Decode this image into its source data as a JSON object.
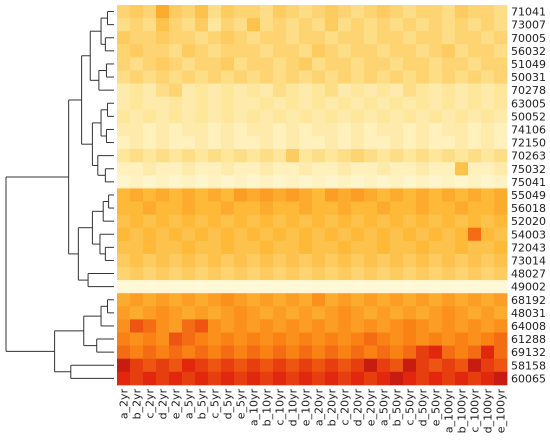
{
  "chart_data": {
    "type": "heatmap",
    "title": "",
    "xlabel": "",
    "ylabel": "",
    "columns": [
      "a_2yr",
      "b_2yr",
      "c_2yr",
      "d_2yr",
      "e_2yr",
      "a_5yr",
      "b_5yr",
      "c_5yr",
      "d_5yr",
      "e_5yr",
      "a_10yr",
      "b_10yr",
      "c_10yr",
      "d_10yr",
      "e_10yr",
      "a_20yr",
      "b_20yr",
      "c_20yr",
      "d_20yr",
      "e_20yr",
      "a_50yr",
      "b_50yr",
      "c_50yr",
      "d_50yr",
      "e_50yr",
      "a_100yr",
      "b_100yr",
      "c_100yr",
      "d_100yr",
      "e_100yr"
    ],
    "rows": [
      "71041",
      "73007",
      "70005",
      "56032",
      "51049",
      "50031",
      "70278",
      "63005",
      "50052",
      "74106",
      "72150",
      "70263",
      "75032",
      "75041",
      "55049",
      "56018",
      "52020",
      "54003",
      "72043",
      "73014",
      "48027",
      "49002",
      "68192",
      "48031",
      "64008",
      "61288",
      "69132",
      "58158",
      "60065"
    ],
    "value_scale": "0 = pale yellow (low) to 1 = dark red (high)",
    "dendrogram": "row clustering tree on left; two major clusters (upper 22 stations, lower 7 stations)",
    "values": [
      [
        0.3,
        0.35,
        0.3,
        0.5,
        0.35,
        0.3,
        0.4,
        0.25,
        0.35,
        0.3,
        0.3,
        0.25,
        0.35,
        0.3,
        0.25,
        0.3,
        0.35,
        0.3,
        0.25,
        0.3,
        0.35,
        0.3,
        0.25,
        0.3,
        0.3,
        0.25,
        0.35,
        0.3,
        0.3,
        0.25
      ],
      [
        0.25,
        0.3,
        0.25,
        0.4,
        0.3,
        0.25,
        0.35,
        0.2,
        0.3,
        0.25,
        0.4,
        0.25,
        0.3,
        0.25,
        0.3,
        0.25,
        0.35,
        0.25,
        0.3,
        0.25,
        0.3,
        0.25,
        0.3,
        0.25,
        0.3,
        0.25,
        0.3,
        0.25,
        0.3,
        0.25
      ],
      [
        0.35,
        0.3,
        0.3,
        0.35,
        0.3,
        0.3,
        0.25,
        0.3,
        0.35,
        0.3,
        0.25,
        0.3,
        0.3,
        0.25,
        0.3,
        0.3,
        0.25,
        0.3,
        0.3,
        0.25,
        0.3,
        0.3,
        0.25,
        0.3,
        0.3,
        0.25,
        0.3,
        0.3,
        0.25,
        0.3
      ],
      [
        0.3,
        0.35,
        0.3,
        0.3,
        0.25,
        0.35,
        0.3,
        0.25,
        0.3,
        0.3,
        0.3,
        0.25,
        0.3,
        0.3,
        0.25,
        0.35,
        0.3,
        0.25,
        0.3,
        0.3,
        0.25,
        0.3,
        0.3,
        0.25,
        0.3,
        0.35,
        0.25,
        0.3,
        0.3,
        0.25
      ],
      [
        0.3,
        0.25,
        0.3,
        0.35,
        0.3,
        0.25,
        0.3,
        0.3,
        0.35,
        0.25,
        0.3,
        0.3,
        0.25,
        0.3,
        0.35,
        0.25,
        0.3,
        0.3,
        0.25,
        0.3,
        0.3,
        0.25,
        0.3,
        0.3,
        0.25,
        0.3,
        0.3,
        0.25,
        0.3,
        0.3
      ],
      [
        0.25,
        0.3,
        0.25,
        0.3,
        0.25,
        0.3,
        0.25,
        0.3,
        0.25,
        0.3,
        0.25,
        0.3,
        0.25,
        0.3,
        0.25,
        0.3,
        0.25,
        0.3,
        0.25,
        0.3,
        0.25,
        0.3,
        0.25,
        0.3,
        0.25,
        0.3,
        0.25,
        0.3,
        0.25,
        0.3
      ],
      [
        0.15,
        0.2,
        0.15,
        0.25,
        0.3,
        0.15,
        0.2,
        0.15,
        0.2,
        0.15,
        0.2,
        0.15,
        0.25,
        0.2,
        0.15,
        0.2,
        0.25,
        0.15,
        0.2,
        0.15,
        0.2,
        0.15,
        0.25,
        0.2,
        0.15,
        0.2,
        0.15,
        0.2,
        0.15,
        0.2
      ],
      [
        0.15,
        0.2,
        0.15,
        0.15,
        0.2,
        0.15,
        0.2,
        0.15,
        0.2,
        0.15,
        0.15,
        0.2,
        0.15,
        0.2,
        0.15,
        0.2,
        0.15,
        0.2,
        0.15,
        0.2,
        0.15,
        0.2,
        0.15,
        0.2,
        0.15,
        0.2,
        0.15,
        0.2,
        0.15,
        0.2
      ],
      [
        0.2,
        0.15,
        0.2,
        0.15,
        0.2,
        0.15,
        0.2,
        0.15,
        0.2,
        0.15,
        0.2,
        0.15,
        0.2,
        0.15,
        0.2,
        0.15,
        0.2,
        0.15,
        0.2,
        0.15,
        0.2,
        0.15,
        0.2,
        0.15,
        0.2,
        0.15,
        0.2,
        0.15,
        0.2,
        0.15
      ],
      [
        0.15,
        0.15,
        0.1,
        0.15,
        0.1,
        0.15,
        0.15,
        0.1,
        0.15,
        0.1,
        0.15,
        0.15,
        0.1,
        0.15,
        0.1,
        0.15,
        0.15,
        0.1,
        0.15,
        0.1,
        0.15,
        0.15,
        0.1,
        0.15,
        0.1,
        0.15,
        0.15,
        0.1,
        0.15,
        0.1
      ],
      [
        0.1,
        0.15,
        0.1,
        0.15,
        0.1,
        0.1,
        0.15,
        0.1,
        0.15,
        0.1,
        0.1,
        0.15,
        0.1,
        0.15,
        0.1,
        0.1,
        0.15,
        0.1,
        0.15,
        0.1,
        0.1,
        0.15,
        0.1,
        0.15,
        0.1,
        0.1,
        0.15,
        0.1,
        0.15,
        0.1
      ],
      [
        0.2,
        0.25,
        0.2,
        0.25,
        0.2,
        0.25,
        0.2,
        0.25,
        0.2,
        0.25,
        0.2,
        0.25,
        0.2,
        0.35,
        0.2,
        0.25,
        0.2,
        0.25,
        0.3,
        0.25,
        0.2,
        0.25,
        0.2,
        0.25,
        0.2,
        0.25,
        0.2,
        0.25,
        0.2,
        0.25
      ],
      [
        0.1,
        0.1,
        0.15,
        0.1,
        0.1,
        0.15,
        0.1,
        0.1,
        0.15,
        0.1,
        0.1,
        0.15,
        0.1,
        0.1,
        0.15,
        0.1,
        0.1,
        0.15,
        0.1,
        0.1,
        0.15,
        0.1,
        0.1,
        0.15,
        0.1,
        0.1,
        0.4,
        0.1,
        0.1,
        0.15
      ],
      [
        0.05,
        0.08,
        0.05,
        0.08,
        0.05,
        0.08,
        0.05,
        0.08,
        0.05,
        0.08,
        0.05,
        0.08,
        0.05,
        0.08,
        0.05,
        0.08,
        0.05,
        0.08,
        0.05,
        0.08,
        0.05,
        0.08,
        0.05,
        0.08,
        0.05,
        0.08,
        0.05,
        0.08,
        0.05,
        0.08
      ],
      [
        0.45,
        0.5,
        0.45,
        0.5,
        0.45,
        0.5,
        0.45,
        0.5,
        0.45,
        0.55,
        0.5,
        0.55,
        0.5,
        0.55,
        0.5,
        0.45,
        0.55,
        0.5,
        0.55,
        0.5,
        0.45,
        0.5,
        0.45,
        0.5,
        0.45,
        0.5,
        0.45,
        0.5,
        0.45,
        0.5
      ],
      [
        0.45,
        0.45,
        0.5,
        0.45,
        0.45,
        0.5,
        0.45,
        0.45,
        0.5,
        0.45,
        0.45,
        0.5,
        0.45,
        0.45,
        0.5,
        0.45,
        0.45,
        0.5,
        0.45,
        0.45,
        0.5,
        0.45,
        0.45,
        0.5,
        0.45,
        0.45,
        0.5,
        0.45,
        0.45,
        0.5
      ],
      [
        0.4,
        0.45,
        0.4,
        0.45,
        0.4,
        0.45,
        0.4,
        0.45,
        0.4,
        0.45,
        0.4,
        0.45,
        0.4,
        0.45,
        0.4,
        0.45,
        0.4,
        0.45,
        0.4,
        0.45,
        0.4,
        0.45,
        0.4,
        0.45,
        0.4,
        0.45,
        0.4,
        0.45,
        0.4,
        0.45
      ],
      [
        0.45,
        0.4,
        0.45,
        0.4,
        0.45,
        0.4,
        0.45,
        0.4,
        0.45,
        0.4,
        0.45,
        0.4,
        0.45,
        0.4,
        0.45,
        0.4,
        0.45,
        0.4,
        0.45,
        0.4,
        0.45,
        0.4,
        0.45,
        0.4,
        0.45,
        0.4,
        0.45,
        0.7,
        0.45,
        0.4
      ],
      [
        0.4,
        0.4,
        0.45,
        0.4,
        0.4,
        0.45,
        0.4,
        0.4,
        0.45,
        0.4,
        0.4,
        0.45,
        0.4,
        0.4,
        0.45,
        0.4,
        0.4,
        0.45,
        0.4,
        0.4,
        0.45,
        0.4,
        0.4,
        0.45,
        0.4,
        0.4,
        0.45,
        0.4,
        0.4,
        0.45
      ],
      [
        0.35,
        0.4,
        0.35,
        0.4,
        0.35,
        0.4,
        0.35,
        0.4,
        0.35,
        0.4,
        0.35,
        0.4,
        0.35,
        0.4,
        0.35,
        0.4,
        0.35,
        0.4,
        0.35,
        0.4,
        0.35,
        0.4,
        0.35,
        0.4,
        0.35,
        0.4,
        0.35,
        0.4,
        0.35,
        0.4
      ],
      [
        0.3,
        0.35,
        0.3,
        0.35,
        0.3,
        0.35,
        0.3,
        0.35,
        0.3,
        0.35,
        0.3,
        0.35,
        0.3,
        0.35,
        0.3,
        0.35,
        0.3,
        0.35,
        0.3,
        0.35,
        0.3,
        0.35,
        0.3,
        0.35,
        0.3,
        0.35,
        0.3,
        0.35,
        0.3,
        0.35
      ],
      [
        0.02,
        0.02,
        0.02,
        0.02,
        0.02,
        0.02,
        0.02,
        0.02,
        0.02,
        0.02,
        0.02,
        0.02,
        0.02,
        0.02,
        0.02,
        0.02,
        0.02,
        0.02,
        0.02,
        0.02,
        0.02,
        0.02,
        0.02,
        0.02,
        0.02,
        0.02,
        0.02,
        0.02,
        0.02,
        0.02
      ],
      [
        0.5,
        0.55,
        0.5,
        0.55,
        0.5,
        0.55,
        0.5,
        0.55,
        0.6,
        0.55,
        0.5,
        0.55,
        0.5,
        0.55,
        0.5,
        0.6,
        0.5,
        0.55,
        0.5,
        0.55,
        0.5,
        0.55,
        0.5,
        0.55,
        0.5,
        0.55,
        0.5,
        0.55,
        0.5,
        0.55
      ],
      [
        0.55,
        0.5,
        0.55,
        0.6,
        0.55,
        0.5,
        0.55,
        0.5,
        0.55,
        0.6,
        0.55,
        0.5,
        0.55,
        0.5,
        0.55,
        0.5,
        0.55,
        0.6,
        0.55,
        0.5,
        0.55,
        0.5,
        0.55,
        0.5,
        0.55,
        0.6,
        0.55,
        0.5,
        0.55,
        0.5
      ],
      [
        0.6,
        0.75,
        0.7,
        0.6,
        0.55,
        0.7,
        0.75,
        0.6,
        0.55,
        0.6,
        0.55,
        0.6,
        0.55,
        0.6,
        0.55,
        0.6,
        0.55,
        0.6,
        0.55,
        0.6,
        0.55,
        0.6,
        0.65,
        0.6,
        0.55,
        0.6,
        0.55,
        0.6,
        0.55,
        0.6
      ],
      [
        0.65,
        0.6,
        0.65,
        0.6,
        0.75,
        0.7,
        0.65,
        0.6,
        0.65,
        0.6,
        0.65,
        0.6,
        0.65,
        0.6,
        0.65,
        0.6,
        0.65,
        0.6,
        0.65,
        0.7,
        0.65,
        0.6,
        0.65,
        0.6,
        0.65,
        0.6,
        0.65,
        0.6,
        0.65,
        0.7
      ],
      [
        0.7,
        0.65,
        0.7,
        0.65,
        0.7,
        0.65,
        0.7,
        0.65,
        0.7,
        0.65,
        0.7,
        0.65,
        0.7,
        0.65,
        0.7,
        0.65,
        0.7,
        0.65,
        0.7,
        0.65,
        0.7,
        0.65,
        0.7,
        0.8,
        0.85,
        0.7,
        0.65,
        0.7,
        0.85,
        0.7
      ],
      [
        0.9,
        0.8,
        0.75,
        0.8,
        0.75,
        0.85,
        0.8,
        0.75,
        0.8,
        0.75,
        0.8,
        0.75,
        0.8,
        0.75,
        0.8,
        0.75,
        0.8,
        0.75,
        0.8,
        0.9,
        0.8,
        0.75,
        0.9,
        0.8,
        0.75,
        0.8,
        0.75,
        0.9,
        0.8,
        0.75
      ],
      [
        0.85,
        0.8,
        0.85,
        0.8,
        0.85,
        0.8,
        0.85,
        0.8,
        0.85,
        0.8,
        0.85,
        0.8,
        0.85,
        0.8,
        0.85,
        0.8,
        0.85,
        0.8,
        0.85,
        0.8,
        0.85,
        0.9,
        0.85,
        0.8,
        0.85,
        0.8,
        0.85,
        0.8,
        0.85,
        0.9
      ]
    ]
  }
}
